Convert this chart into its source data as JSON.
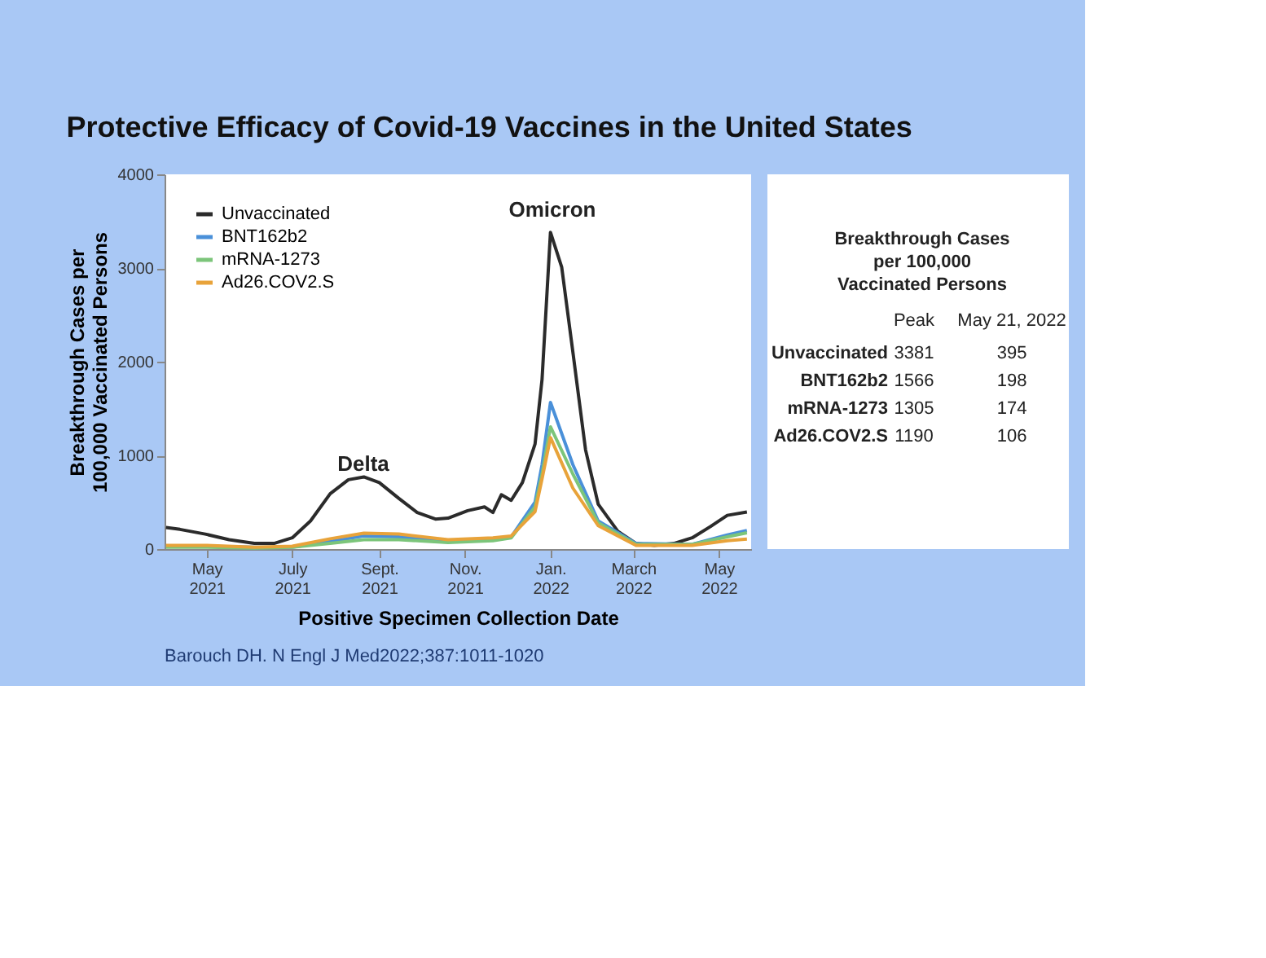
{
  "chart_data": {
    "type": "line",
    "title": "Protective Efficacy of Covid-19 Vaccines in the United States",
    "xlabel": "Positive Specimen Collection Date",
    "ylabel": "Breakthrough Cases per 100,000 Vaccinated Persons",
    "xlim": [
      "2021-04-01",
      "2022-05-24"
    ],
    "ylim": [
      0,
      4000
    ],
    "yticks": [
      0,
      1000,
      2000,
      3000,
      4000
    ],
    "xticks": [
      {
        "value": "2021-05-01",
        "label": "May 2021"
      },
      {
        "value": "2021-07-01",
        "label": "July 2021"
      },
      {
        "value": "2021-09-01",
        "label": "Sept. 2021"
      },
      {
        "value": "2021-11-01",
        "label": "Nov. 2021"
      },
      {
        "value": "2022-01-01",
        "label": "Jan. 2022"
      },
      {
        "value": "2022-03-01",
        "label": "March 2022"
      },
      {
        "value": "2022-05-01",
        "label": "May 2022"
      }
    ],
    "grid": false,
    "legend": "top left",
    "line_style": "solid",
    "marker": "none",
    "series": [
      {
        "name": "Unvaccinated",
        "color": "#2b2b2b",
        "x": [
          "2021-04-02",
          "2021-04-12",
          "2021-04-30",
          "2021-05-17",
          "2021-06-04",
          "2021-06-18",
          "2021-07-01",
          "2021-07-14",
          "2021-07-28",
          "2021-08-10",
          "2021-08-21",
          "2021-09-01",
          "2021-09-15",
          "2021-09-28",
          "2021-10-11",
          "2021-10-20",
          "2021-11-03",
          "2021-11-15",
          "2021-11-21",
          "2021-11-27",
          "2021-12-04",
          "2021-12-12",
          "2021-12-21",
          "2021-12-26",
          "2022-01-01",
          "2022-01-09",
          "2022-01-17",
          "2022-01-26",
          "2022-02-04",
          "2022-02-18",
          "2022-03-03",
          "2022-03-16",
          "2022-03-30",
          "2022-04-12",
          "2022-04-25",
          "2022-05-07",
          "2022-05-21"
        ],
        "values": [
          230,
          210,
          160,
          100,
          60,
          60,
          120,
          300,
          590,
          740,
          770,
          710,
          540,
          390,
          320,
          330,
          410,
          450,
          390,
          580,
          520,
          710,
          1120,
          1810,
          3381,
          3010,
          2100,
          1060,
          480,
          190,
          60,
          40,
          60,
          120,
          240,
          360,
          395
        ]
      },
      {
        "name": "BNT162b2",
        "color": "#4a90d9",
        "x": [
          "2021-04-02",
          "2021-04-30",
          "2021-06-04",
          "2021-07-01",
          "2021-07-28",
          "2021-08-21",
          "2021-09-15",
          "2021-10-20",
          "2021-11-21",
          "2021-12-04",
          "2021-12-21",
          "2021-12-26",
          "2022-01-01",
          "2022-01-17",
          "2022-02-04",
          "2022-03-03",
          "2022-04-12",
          "2022-05-07",
          "2022-05-21"
        ],
        "values": [
          30,
          30,
          20,
          20,
          80,
          140,
          130,
          80,
          100,
          130,
          500,
          900,
          1566,
          900,
          300,
          60,
          50,
          150,
          198
        ]
      },
      {
        "name": "mRNA-1273",
        "color": "#7cc57a",
        "x": [
          "2021-04-02",
          "2021-04-30",
          "2021-06-04",
          "2021-07-01",
          "2021-07-28",
          "2021-08-21",
          "2021-09-15",
          "2021-10-20",
          "2021-11-21",
          "2021-12-04",
          "2021-12-21",
          "2021-12-26",
          "2022-01-01",
          "2022-01-17",
          "2022-02-04",
          "2022-03-03",
          "2022-04-12",
          "2022-05-07",
          "2022-05-21"
        ],
        "values": [
          20,
          20,
          10,
          20,
          60,
          100,
          100,
          70,
          90,
          120,
          450,
          800,
          1305,
          800,
          280,
          50,
          50,
          130,
          174
        ]
      },
      {
        "name": "Ad26.COV2.S",
        "color": "#e8a33a",
        "x": [
          "2021-04-02",
          "2021-04-30",
          "2021-06-04",
          "2021-07-01",
          "2021-07-28",
          "2021-08-21",
          "2021-09-15",
          "2021-10-20",
          "2021-11-21",
          "2021-12-04",
          "2021-12-21",
          "2021-12-26",
          "2022-01-01",
          "2022-01-17",
          "2022-02-04",
          "2022-03-03",
          "2022-04-12",
          "2022-05-07",
          "2022-05-21"
        ],
        "values": [
          40,
          40,
          20,
          30,
          110,
          170,
          160,
          100,
          120,
          140,
          400,
          750,
          1190,
          650,
          250,
          40,
          40,
          90,
          106
        ]
      }
    ],
    "annotations": [
      "Delta",
      "Omicron",
      "Breakthrough Cases",
      "per 100,000",
      "Vaccinated Persons",
      "Peak",
      "May 21, 2022",
      "Unvaccinated",
      "3381",
      "395",
      "BNT162b2",
      "1566",
      "198",
      "mRNA-1273",
      "1305",
      "174",
      "Ad26.COV2.S",
      "1190",
      "106",
      "Barouch DH. N Engl J Med2022;387:1011-1020"
    ]
  }
}
